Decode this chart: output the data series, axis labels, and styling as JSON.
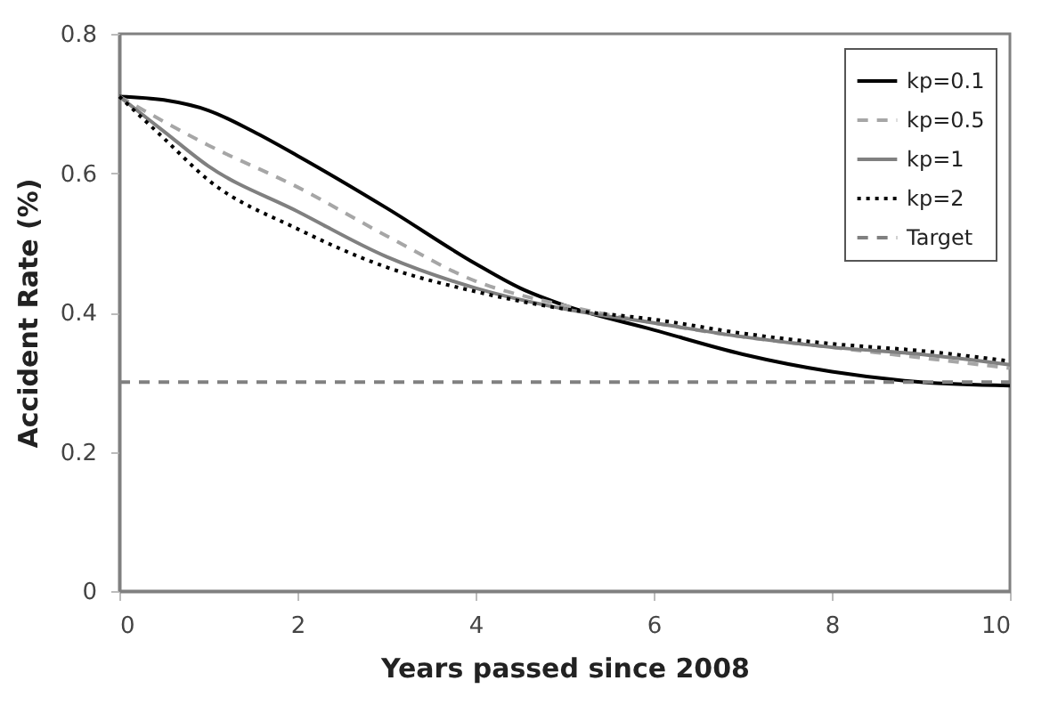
{
  "chart_data": {
    "type": "line",
    "xlabel": "Years passed since 2008",
    "ylabel": "Accident Rate (%)",
    "xlim": [
      0,
      10
    ],
    "xticks": [
      0,
      2,
      4,
      6,
      8,
      10
    ],
    "ylim": [
      0,
      0.8
    ],
    "yticks": [
      0,
      0.2,
      0.4,
      0.6,
      0.8
    ],
    "grid": false,
    "legend": "top right",
    "marker": "none",
    "series": [
      {
        "name": "kp=0.1",
        "color": "#000000",
        "line_style": "solid",
        "x": [
          0,
          0.5,
          1,
          1.5,
          2,
          3,
          4,
          4.5,
          5,
          6,
          7,
          8,
          9,
          10
        ],
        "values": [
          0.71,
          0.705,
          0.69,
          0.66,
          0.625,
          0.55,
          0.47,
          0.435,
          0.41,
          0.375,
          0.34,
          0.315,
          0.3,
          0.295
        ]
      },
      {
        "name": "kp=0.5",
        "color": "#a6a6a6",
        "line_style": "dashed",
        "x": [
          0,
          1,
          2,
          3,
          4,
          5,
          6,
          7,
          8,
          9,
          10
        ],
        "values": [
          0.71,
          0.64,
          0.58,
          0.51,
          0.445,
          0.41,
          0.385,
          0.365,
          0.35,
          0.335,
          0.32
        ]
      },
      {
        "name": "kp=1",
        "color": "#808080",
        "line_style": "solid",
        "x": [
          0,
          0.5,
          1,
          2,
          3,
          4,
          5,
          6,
          7,
          8,
          9,
          10
        ],
        "values": [
          0.71,
          0.66,
          0.61,
          0.545,
          0.48,
          0.435,
          0.405,
          0.385,
          0.365,
          0.35,
          0.34,
          0.325
        ]
      },
      {
        "name": "kp=2",
        "color": "#000000",
        "line_style": "dotted",
        "x": [
          0,
          0.5,
          1,
          2,
          3,
          4,
          5,
          6,
          7,
          8,
          9,
          10
        ],
        "values": [
          0.71,
          0.65,
          0.59,
          0.52,
          0.465,
          0.43,
          0.405,
          0.39,
          0.37,
          0.355,
          0.345,
          0.33
        ]
      },
      {
        "name": "Target",
        "color": "#808080",
        "line_style": "dashed",
        "x": [
          0,
          10
        ],
        "values": [
          0.3,
          0.3
        ]
      }
    ]
  }
}
